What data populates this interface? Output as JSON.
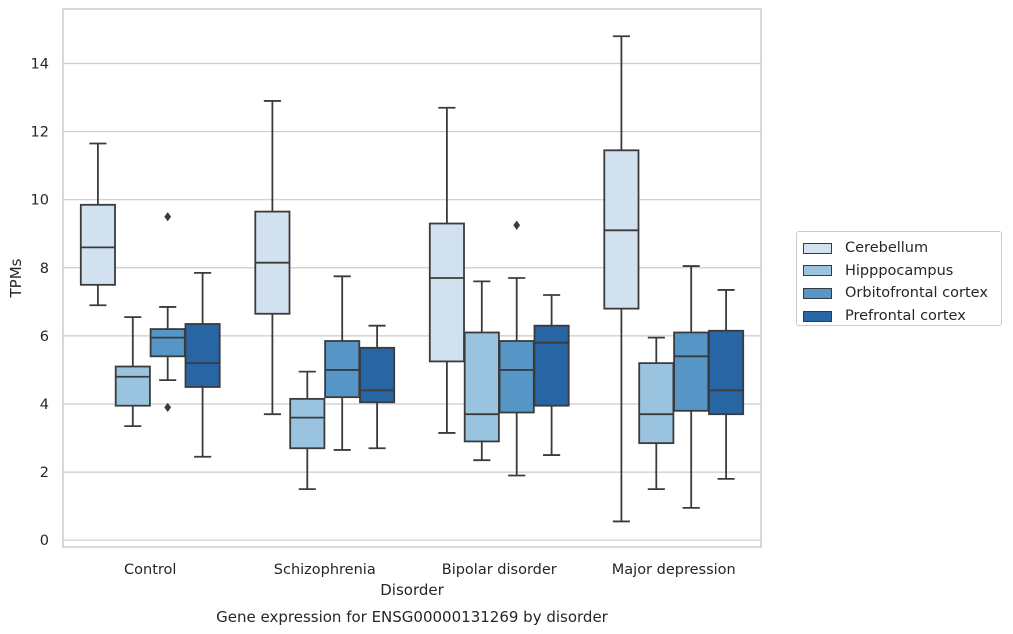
{
  "chart_data": {
    "type": "box",
    "title": "",
    "caption": "Gene expression for ENSG00000131269 by disorder",
    "xlabel": "Disorder",
    "ylabel": "TPMs",
    "ylim": [
      -0.2,
      15.6
    ],
    "yticks": [
      0,
      2,
      4,
      6,
      8,
      10,
      12,
      14
    ],
    "grid": "horizontal",
    "legend_position": "right",
    "categories": [
      "Control",
      "Schizophrenia",
      "Bipolar disorder",
      "Major depression"
    ],
    "series": [
      {
        "name": "Cerebellum",
        "color": "#d1e1f0",
        "boxes": [
          {
            "whisker_low": 6.9,
            "q1": 7.5,
            "median": 8.6,
            "q3": 9.85,
            "whisker_high": 11.65,
            "outliers": []
          },
          {
            "whisker_low": 3.7,
            "q1": 6.65,
            "median": 8.15,
            "q3": 9.65,
            "whisker_high": 12.9,
            "outliers": []
          },
          {
            "whisker_low": 3.15,
            "q1": 5.25,
            "median": 7.7,
            "q3": 9.3,
            "whisker_high": 12.7,
            "outliers": []
          },
          {
            "whisker_low": 0.55,
            "q1": 6.8,
            "median": 9.1,
            "q3": 11.45,
            "whisker_high": 14.8,
            "outliers": []
          }
        ]
      },
      {
        "name": "Hipppocampus",
        "color": "#9ac3df",
        "boxes": [
          {
            "whisker_low": 3.35,
            "q1": 3.95,
            "median": 4.8,
            "q3": 5.1,
            "whisker_high": 6.55,
            "outliers": []
          },
          {
            "whisker_low": 1.5,
            "q1": 2.7,
            "median": 3.6,
            "q3": 4.15,
            "whisker_high": 4.95,
            "outliers": []
          },
          {
            "whisker_low": 2.35,
            "q1": 2.9,
            "median": 3.7,
            "q3": 6.1,
            "whisker_high": 7.6,
            "outliers": []
          },
          {
            "whisker_low": 1.5,
            "q1": 2.85,
            "median": 3.7,
            "q3": 5.2,
            "whisker_high": 5.95,
            "outliers": []
          }
        ]
      },
      {
        "name": "Orbitofrontal cortex",
        "color": "#5596c6",
        "boxes": [
          {
            "whisker_low": 4.7,
            "q1": 5.4,
            "median": 5.95,
            "q3": 6.2,
            "whisker_high": 6.85,
            "outliers": [
              9.5,
              3.9
            ]
          },
          {
            "whisker_low": 2.65,
            "q1": 4.2,
            "median": 5.0,
            "q3": 5.85,
            "whisker_high": 7.75,
            "outliers": []
          },
          {
            "whisker_low": 1.9,
            "q1": 3.75,
            "median": 5.0,
            "q3": 5.85,
            "whisker_high": 7.7,
            "outliers": [
              9.25
            ]
          },
          {
            "whisker_low": 0.95,
            "q1": 3.8,
            "median": 5.4,
            "q3": 6.1,
            "whisker_high": 8.05,
            "outliers": []
          }
        ]
      },
      {
        "name": "Prefrontal cortex",
        "color": "#2865a4",
        "boxes": [
          {
            "whisker_low": 2.45,
            "q1": 4.5,
            "median": 5.2,
            "q3": 6.35,
            "whisker_high": 7.85,
            "outliers": []
          },
          {
            "whisker_low": 2.7,
            "q1": 4.05,
            "median": 4.4,
            "q3": 5.65,
            "whisker_high": 6.3,
            "outliers": []
          },
          {
            "whisker_low": 2.5,
            "q1": 3.95,
            "median": 5.8,
            "q3": 6.3,
            "whisker_high": 7.2,
            "outliers": []
          },
          {
            "whisker_low": 1.8,
            "q1": 3.7,
            "median": 4.4,
            "q3": 6.15,
            "whisker_high": 7.35,
            "outliers": []
          }
        ]
      }
    ]
  }
}
